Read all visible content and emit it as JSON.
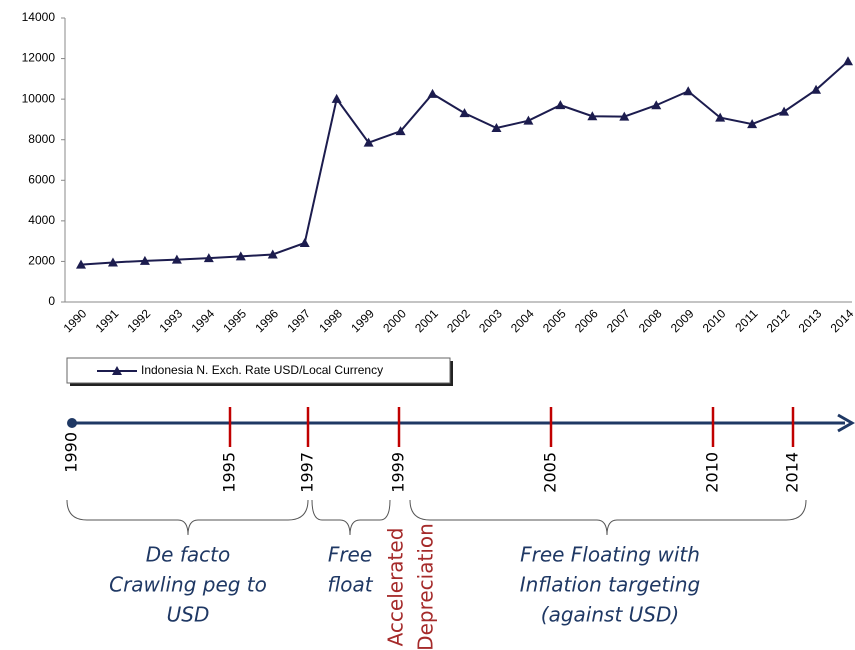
{
  "chart_data": {
    "type": "line",
    "categories": [
      "1990",
      "1991",
      "1992",
      "1993",
      "1994",
      "1995",
      "1996",
      "1997",
      "1998",
      "1999",
      "2000",
      "2001",
      "2002",
      "2003",
      "2004",
      "2005",
      "2006",
      "2007",
      "2008",
      "2009",
      "2010",
      "2011",
      "2012",
      "2013",
      "2014"
    ],
    "series": [
      {
        "name": "Indonesia N. Exch. Rate USD/Local Currency",
        "color": "#1c1c4e",
        "values": [
          1843,
          1950,
          2030,
          2087,
          2161,
          2249,
          2342,
          2909,
          10014,
          7855,
          8422,
          10261,
          9311,
          8577,
          8939,
          9705,
          9159,
          9141,
          9699,
          10390,
          9090,
          8770,
          9387,
          10461,
          11865
        ]
      }
    ],
    "ylim": [
      0,
      14000
    ],
    "yticks": [
      0,
      2000,
      4000,
      6000,
      8000,
      10000,
      12000,
      14000
    ],
    "grid": false
  },
  "timeline": {
    "markers": [
      "1990",
      "1995",
      "1997",
      "1999",
      "2005",
      "2010",
      "2014"
    ],
    "periods": [
      {
        "lines": [
          "De facto",
          "Crawling peg to",
          "USD"
        ]
      },
      {
        "lines": [
          "Free",
          "float"
        ]
      },
      {
        "lines": [
          "Accelerated",
          "Depreciation"
        ]
      },
      {
        "lines": [
          "Free Floating with",
          "Inflation targeting",
          "(against USD)"
        ]
      }
    ]
  }
}
